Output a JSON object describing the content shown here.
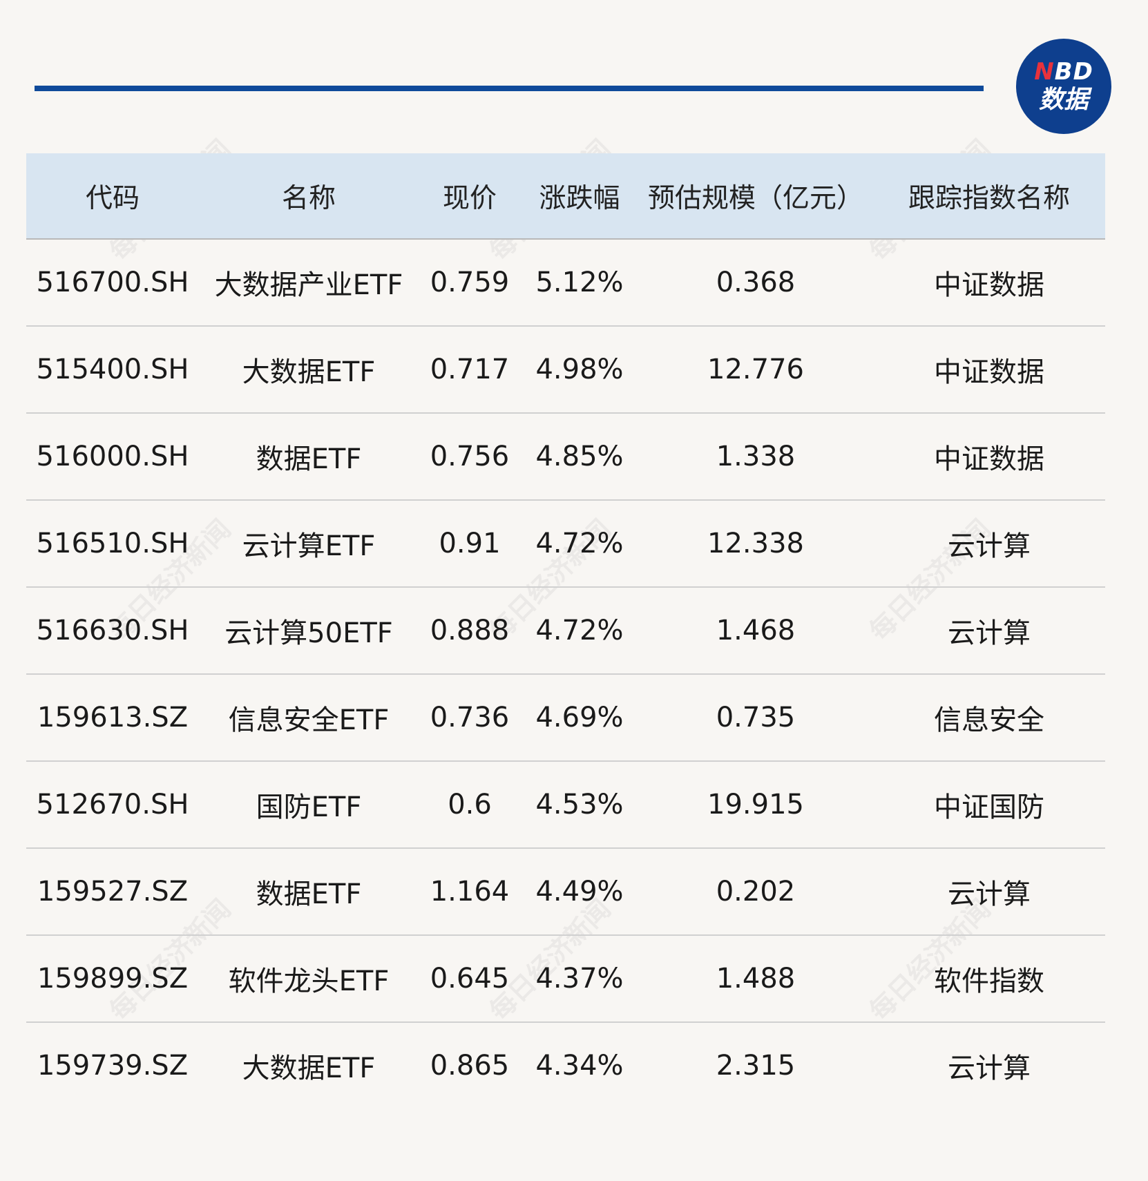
{
  "logo": {
    "letter_n": "N",
    "letters_bd": "BD",
    "subtitle": "数据"
  },
  "watermark_text": "每日经济新闻",
  "colors": {
    "rule": "#0f4a9a",
    "header_bg": "#d8e5f1",
    "logo_bg": "#0e3f8e",
    "logo_accent": "#e8323c"
  },
  "table": {
    "headers": [
      "代码",
      "名称",
      "现价",
      "涨跌幅",
      "预估规模（亿元）",
      "跟踪指数名称"
    ],
    "rows": [
      [
        "516700.SH",
        "大数据产业ETF",
        "0.759",
        "5.12%",
        "0.368",
        "中证数据"
      ],
      [
        "515400.SH",
        "大数据ETF",
        "0.717",
        "4.98%",
        "12.776",
        "中证数据"
      ],
      [
        "516000.SH",
        "数据ETF",
        "0.756",
        "4.85%",
        "1.338",
        "中证数据"
      ],
      [
        "516510.SH",
        "云计算ETF",
        "0.91",
        "4.72%",
        "12.338",
        "云计算"
      ],
      [
        "516630.SH",
        "云计算50ETF",
        "0.888",
        "4.72%",
        "1.468",
        "云计算"
      ],
      [
        "159613.SZ",
        "信息安全ETF",
        "0.736",
        "4.69%",
        "0.735",
        "信息安全"
      ],
      [
        "512670.SH",
        "国防ETF",
        "0.6",
        "4.53%",
        "19.915",
        "中证国防"
      ],
      [
        "159527.SZ",
        "数据ETF",
        "1.164",
        "4.49%",
        "0.202",
        "云计算"
      ],
      [
        "159899.SZ",
        "软件龙头ETF",
        "0.645",
        "4.37%",
        "1.488",
        "软件指数"
      ],
      [
        "159739.SZ",
        "大数据ETF",
        "0.865",
        "4.34%",
        "2.315",
        "云计算"
      ]
    ]
  }
}
